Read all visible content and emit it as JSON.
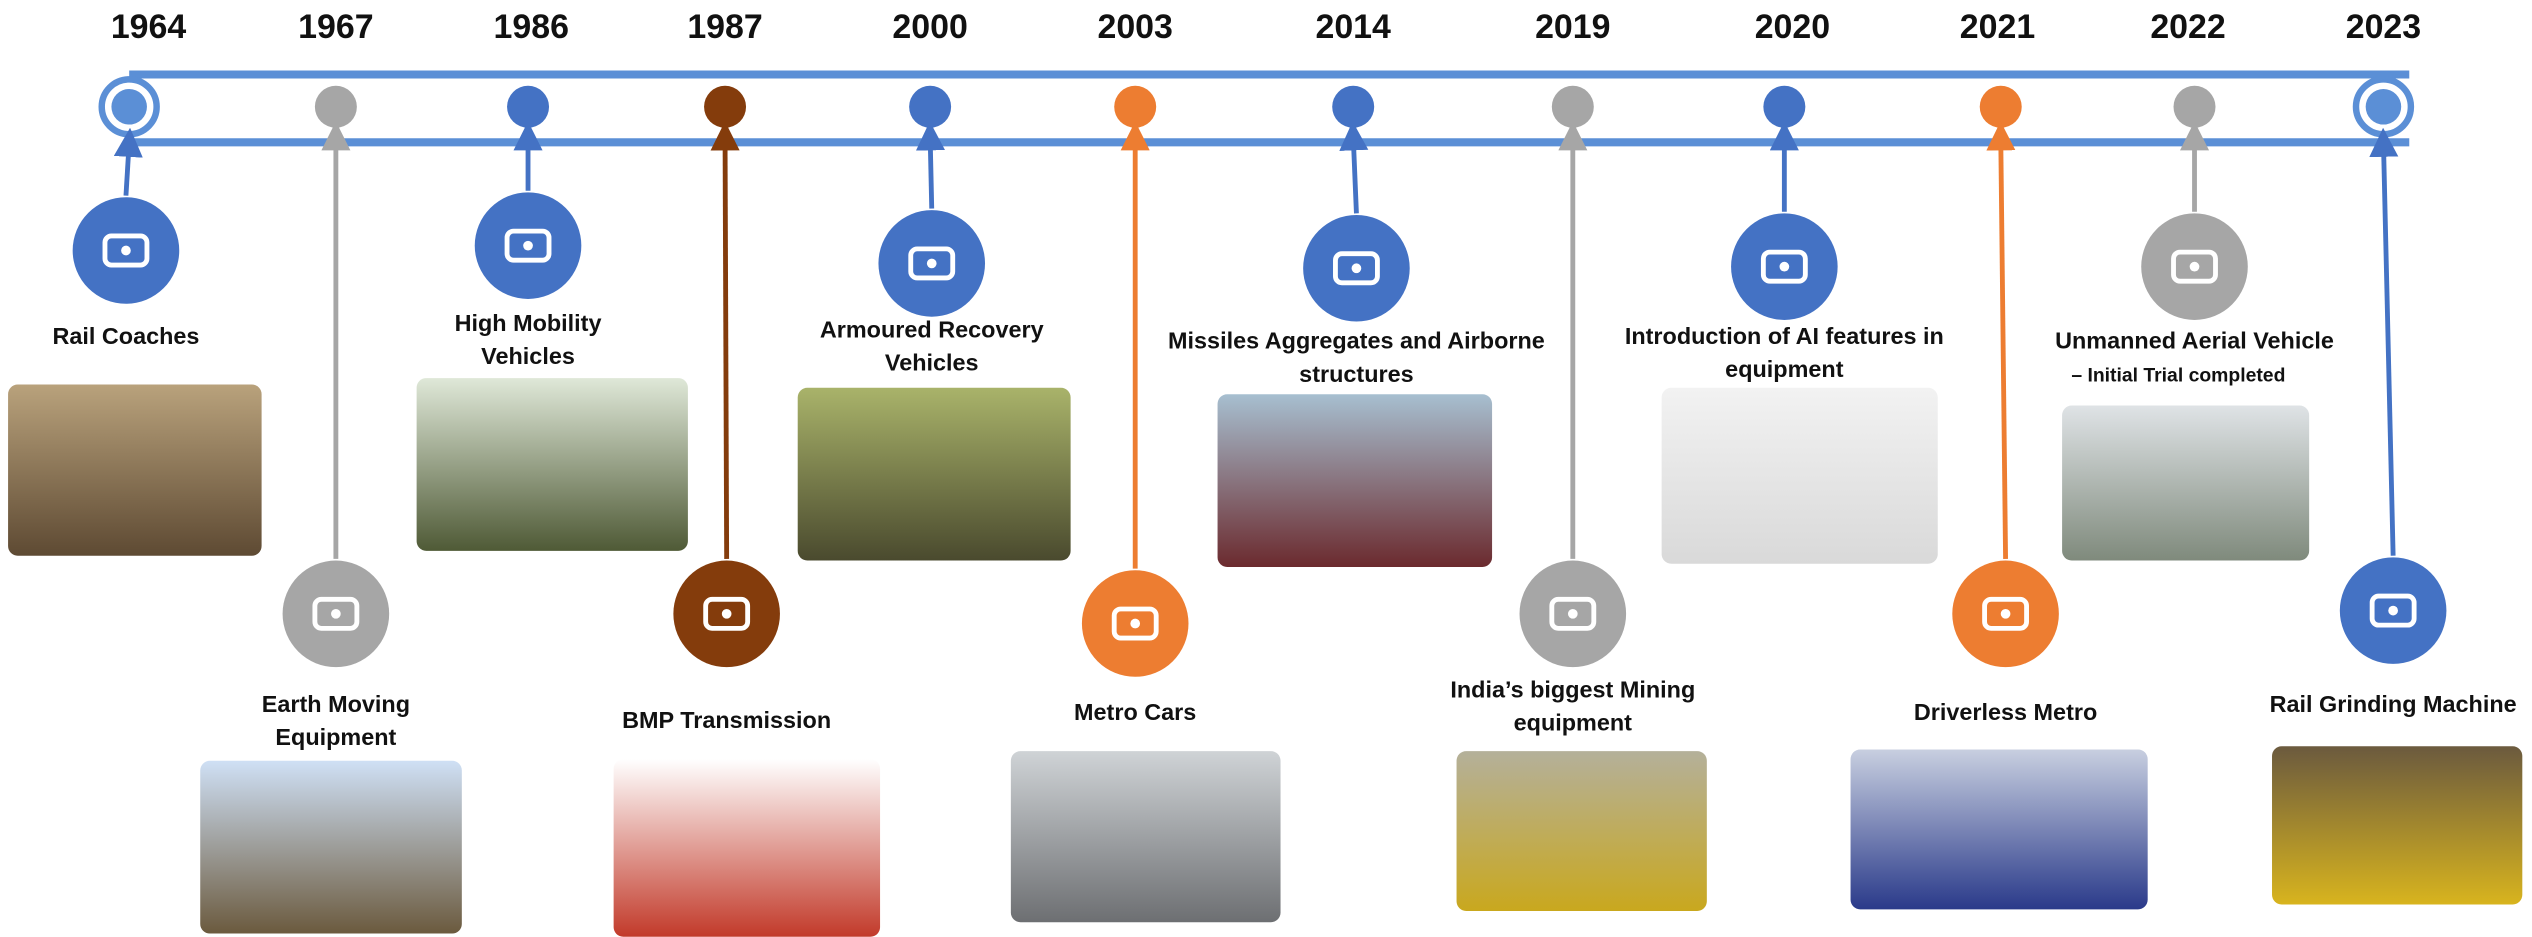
{
  "events": [
    {
      "year": "1964",
      "label": [
        "Rail Coaches"
      ]
    },
    {
      "year": "1967",
      "label": [
        "Earth Moving",
        "Equipment"
      ]
    },
    {
      "year": "1986",
      "label": [
        "High Mobility",
        "Vehicles"
      ]
    },
    {
      "year": "1987",
      "label": [
        "BMP Transmission"
      ]
    },
    {
      "year": "2000",
      "label": [
        "Armoured Recovery",
        "Vehicles"
      ]
    },
    {
      "year": "2003",
      "label": [
        "Metro Cars"
      ]
    },
    {
      "year": "2014",
      "label": [
        "Missiles Aggregates and Airborne",
        "structures"
      ]
    },
    {
      "year": "2019",
      "label": [
        "India’s biggest Mining",
        "equipment"
      ]
    },
    {
      "year": "2020",
      "label": [
        "Introduction of AI features in",
        "equipment"
      ]
    },
    {
      "year": "2021",
      "label": [
        "Driverless Metro"
      ]
    },
    {
      "year": "2022",
      "label": [
        "Unmanned Aerial Vehicle"
      ],
      "note": "– Initial Trial completed"
    },
    {
      "year": "2023",
      "label": [
        "Rail Grinding Machine"
      ]
    }
  ]
}
